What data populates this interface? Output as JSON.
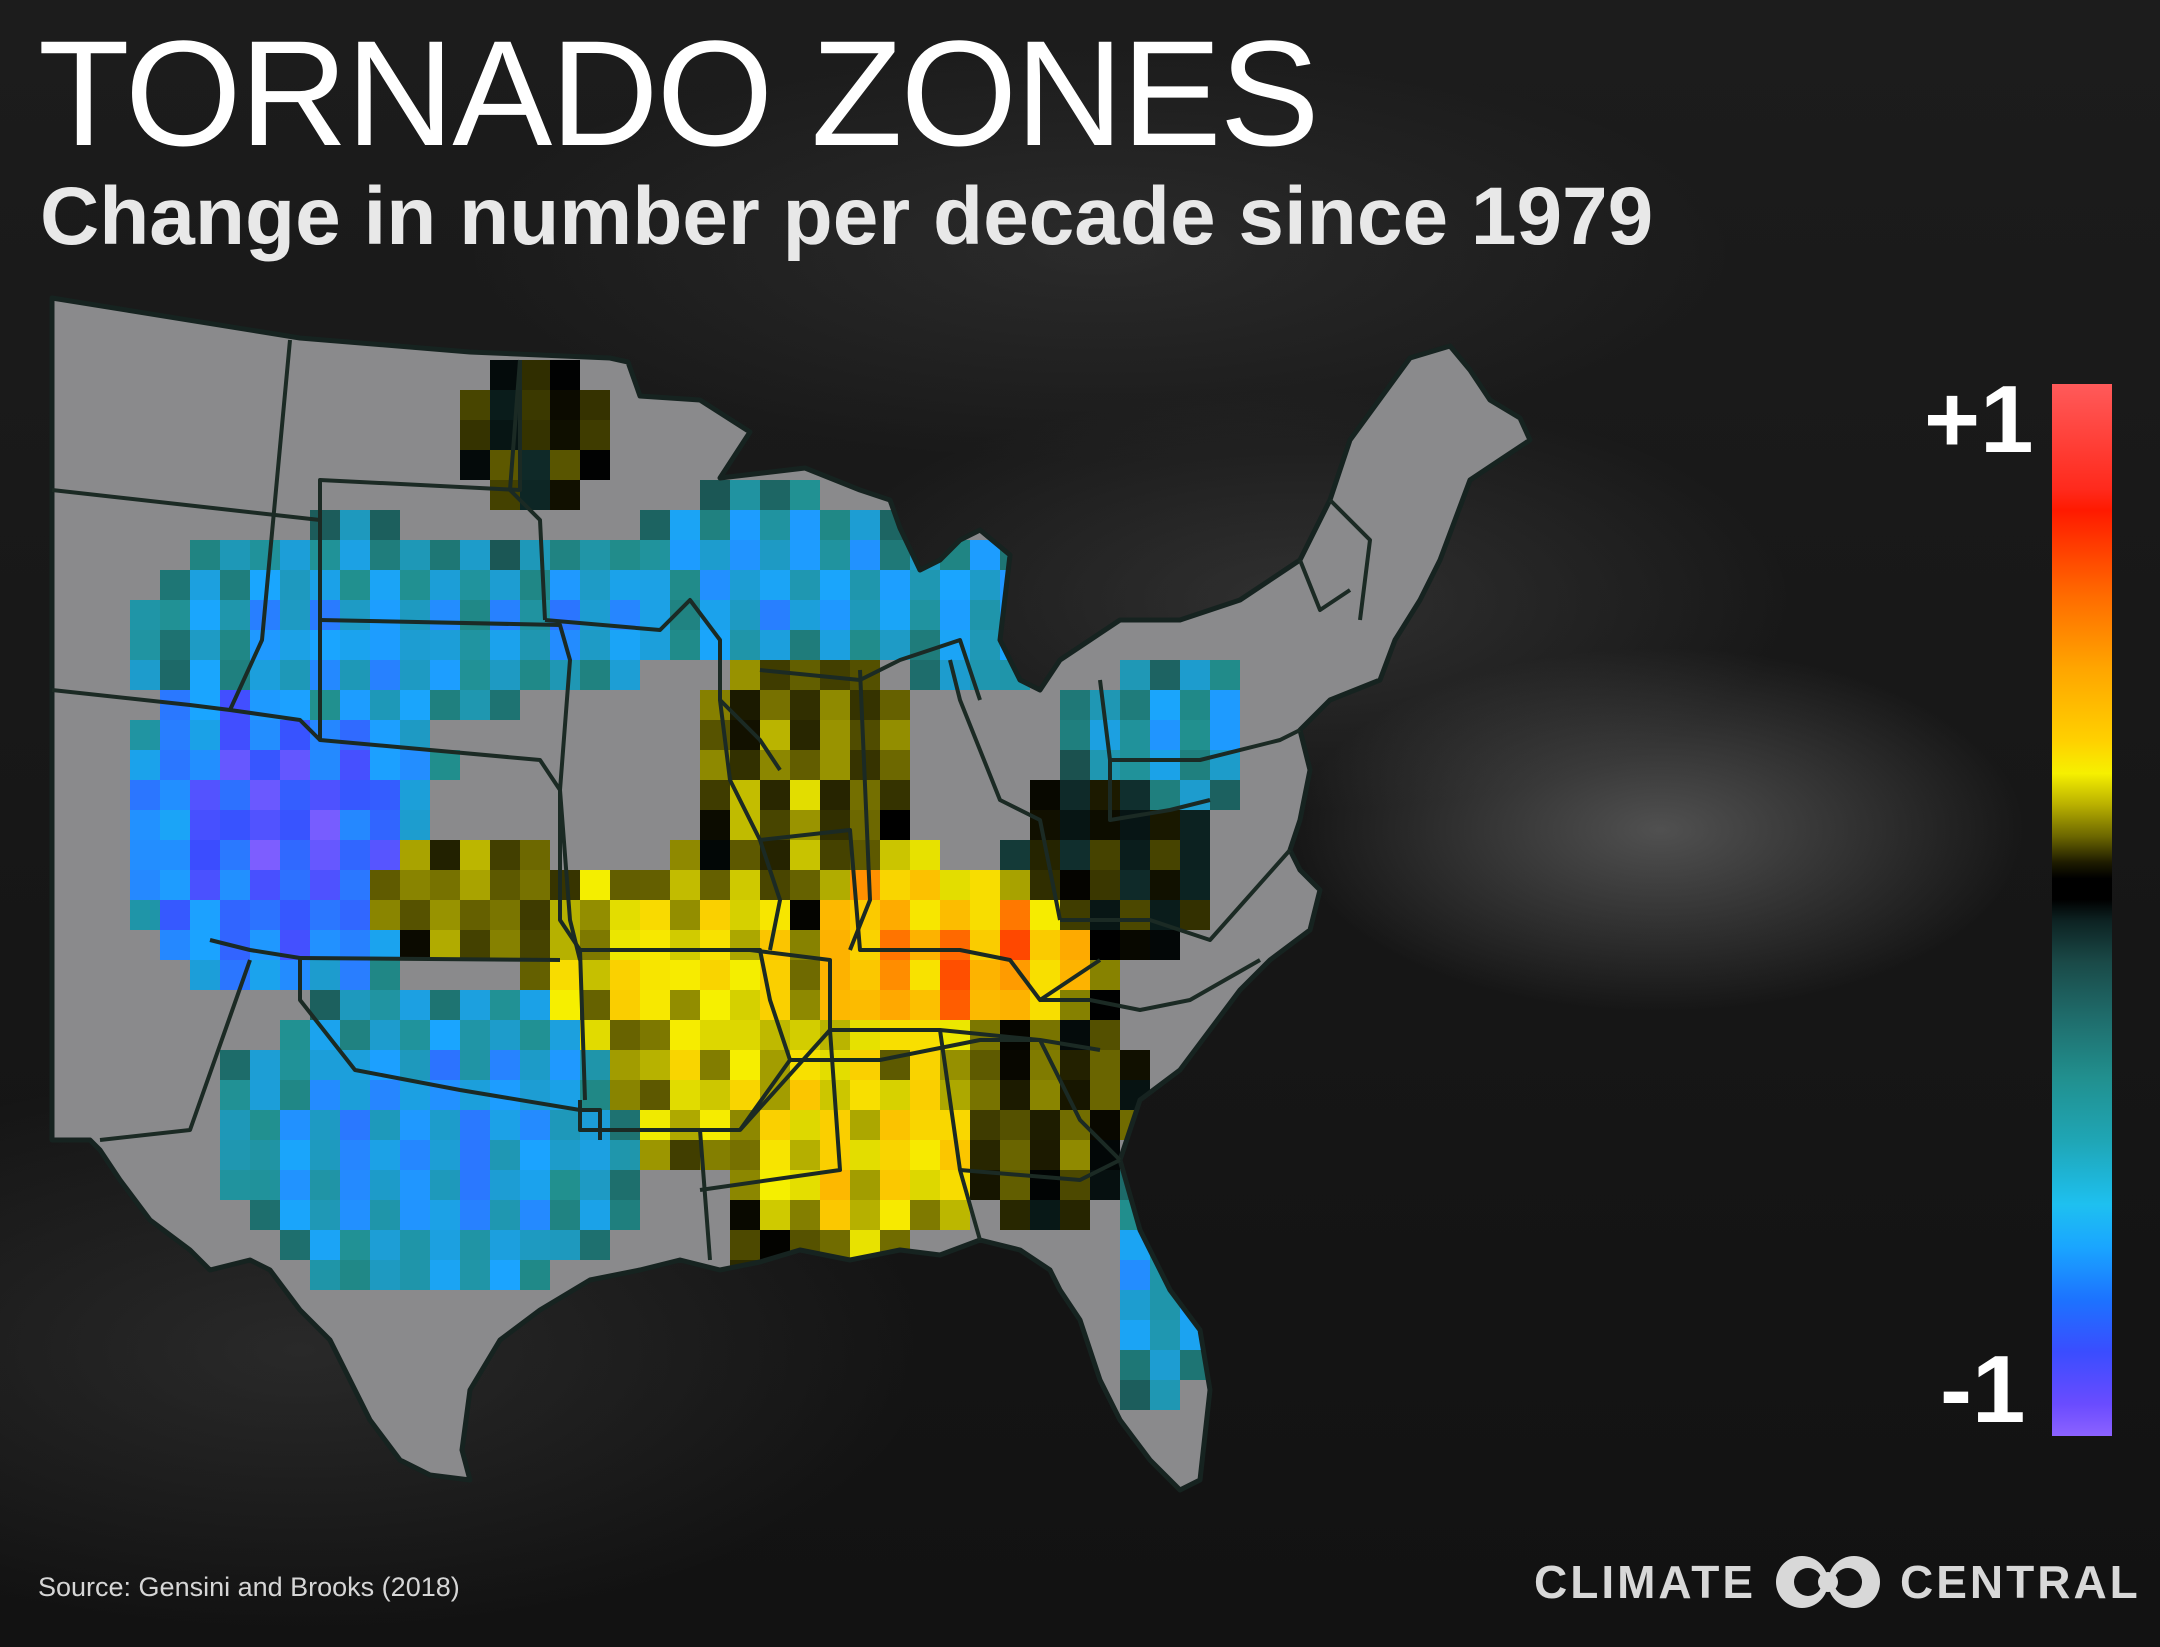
{
  "title": "TORNADO ZONES",
  "subtitle": "Change in number per decade since 1979",
  "legend": {
    "max_label": "+1",
    "min_label": "-1",
    "max_value": 1,
    "min_value": -1,
    "stops": [
      "#8c62ff",
      "#3a4dff",
      "#1aa6ff",
      "#21908f",
      "#1a4a48",
      "#000000",
      "#6c6700",
      "#f6f000",
      "#ffa500",
      "#ff1a00",
      "#ff5a5a"
    ]
  },
  "source": "Source: Gensini and Brooks (2018)",
  "brand": {
    "left_word": "CLIMATE",
    "right_word": "CENTRAL"
  },
  "colors": {
    "land": "#8a8a8c",
    "state_lines": "#1b2a24",
    "background": "#141414"
  }
}
